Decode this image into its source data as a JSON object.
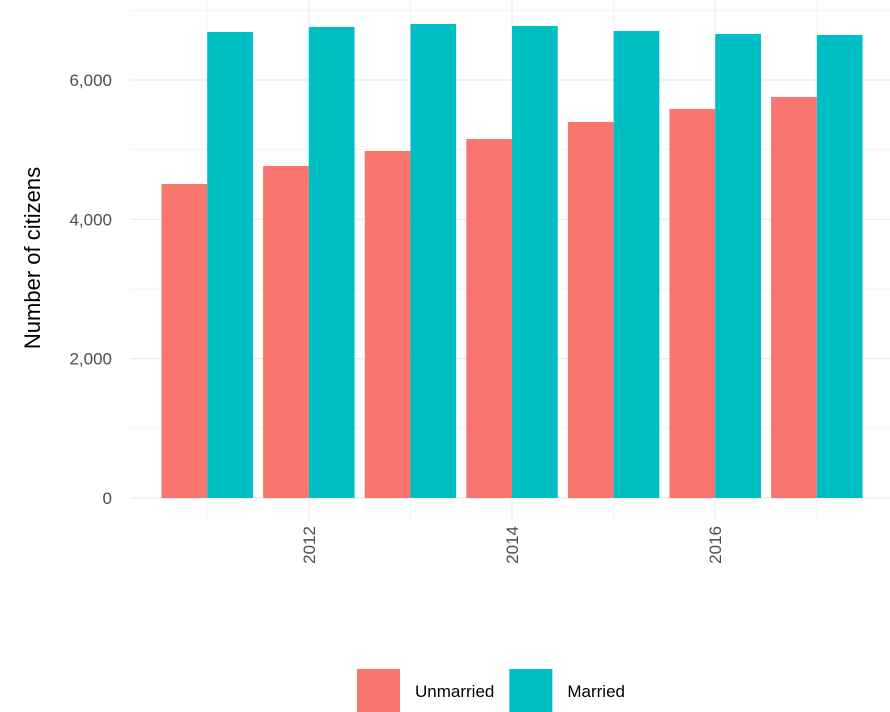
{
  "chart_data": {
    "type": "bar",
    "y_label": "Number of citizens",
    "x": [
      2011,
      2012,
      2013,
      2014,
      2015,
      2016,
      2017
    ],
    "series": [
      {
        "name": "Unmarried",
        "color": "#F8766D",
        "values": [
          4507,
          4765,
          4981,
          5153,
          5397,
          5584,
          5756
        ]
      },
      {
        "name": "Married",
        "color": "#00BFC4",
        "values": [
          6689,
          6761,
          6804,
          6775,
          6703,
          6660,
          6646
        ]
      }
    ],
    "xlim": [
      2010.24,
      2017.72
    ],
    "xticks": [
      2012,
      2014,
      2016
    ],
    "minor_xticks": [
      2011,
      2013,
      2015,
      2017
    ],
    "ylim": [
      -316,
      7148
    ],
    "yticks": [
      0,
      {
        "value": 2000,
        "label": "2,000"
      },
      {
        "value": 4000,
        "label": "4,000"
      },
      {
        "value": 6000,
        "label": "6,000"
      }
    ],
    "minor_yticks": [
      1000,
      3000,
      5000,
      7000
    ],
    "grid": true,
    "legend": "bottom"
  }
}
